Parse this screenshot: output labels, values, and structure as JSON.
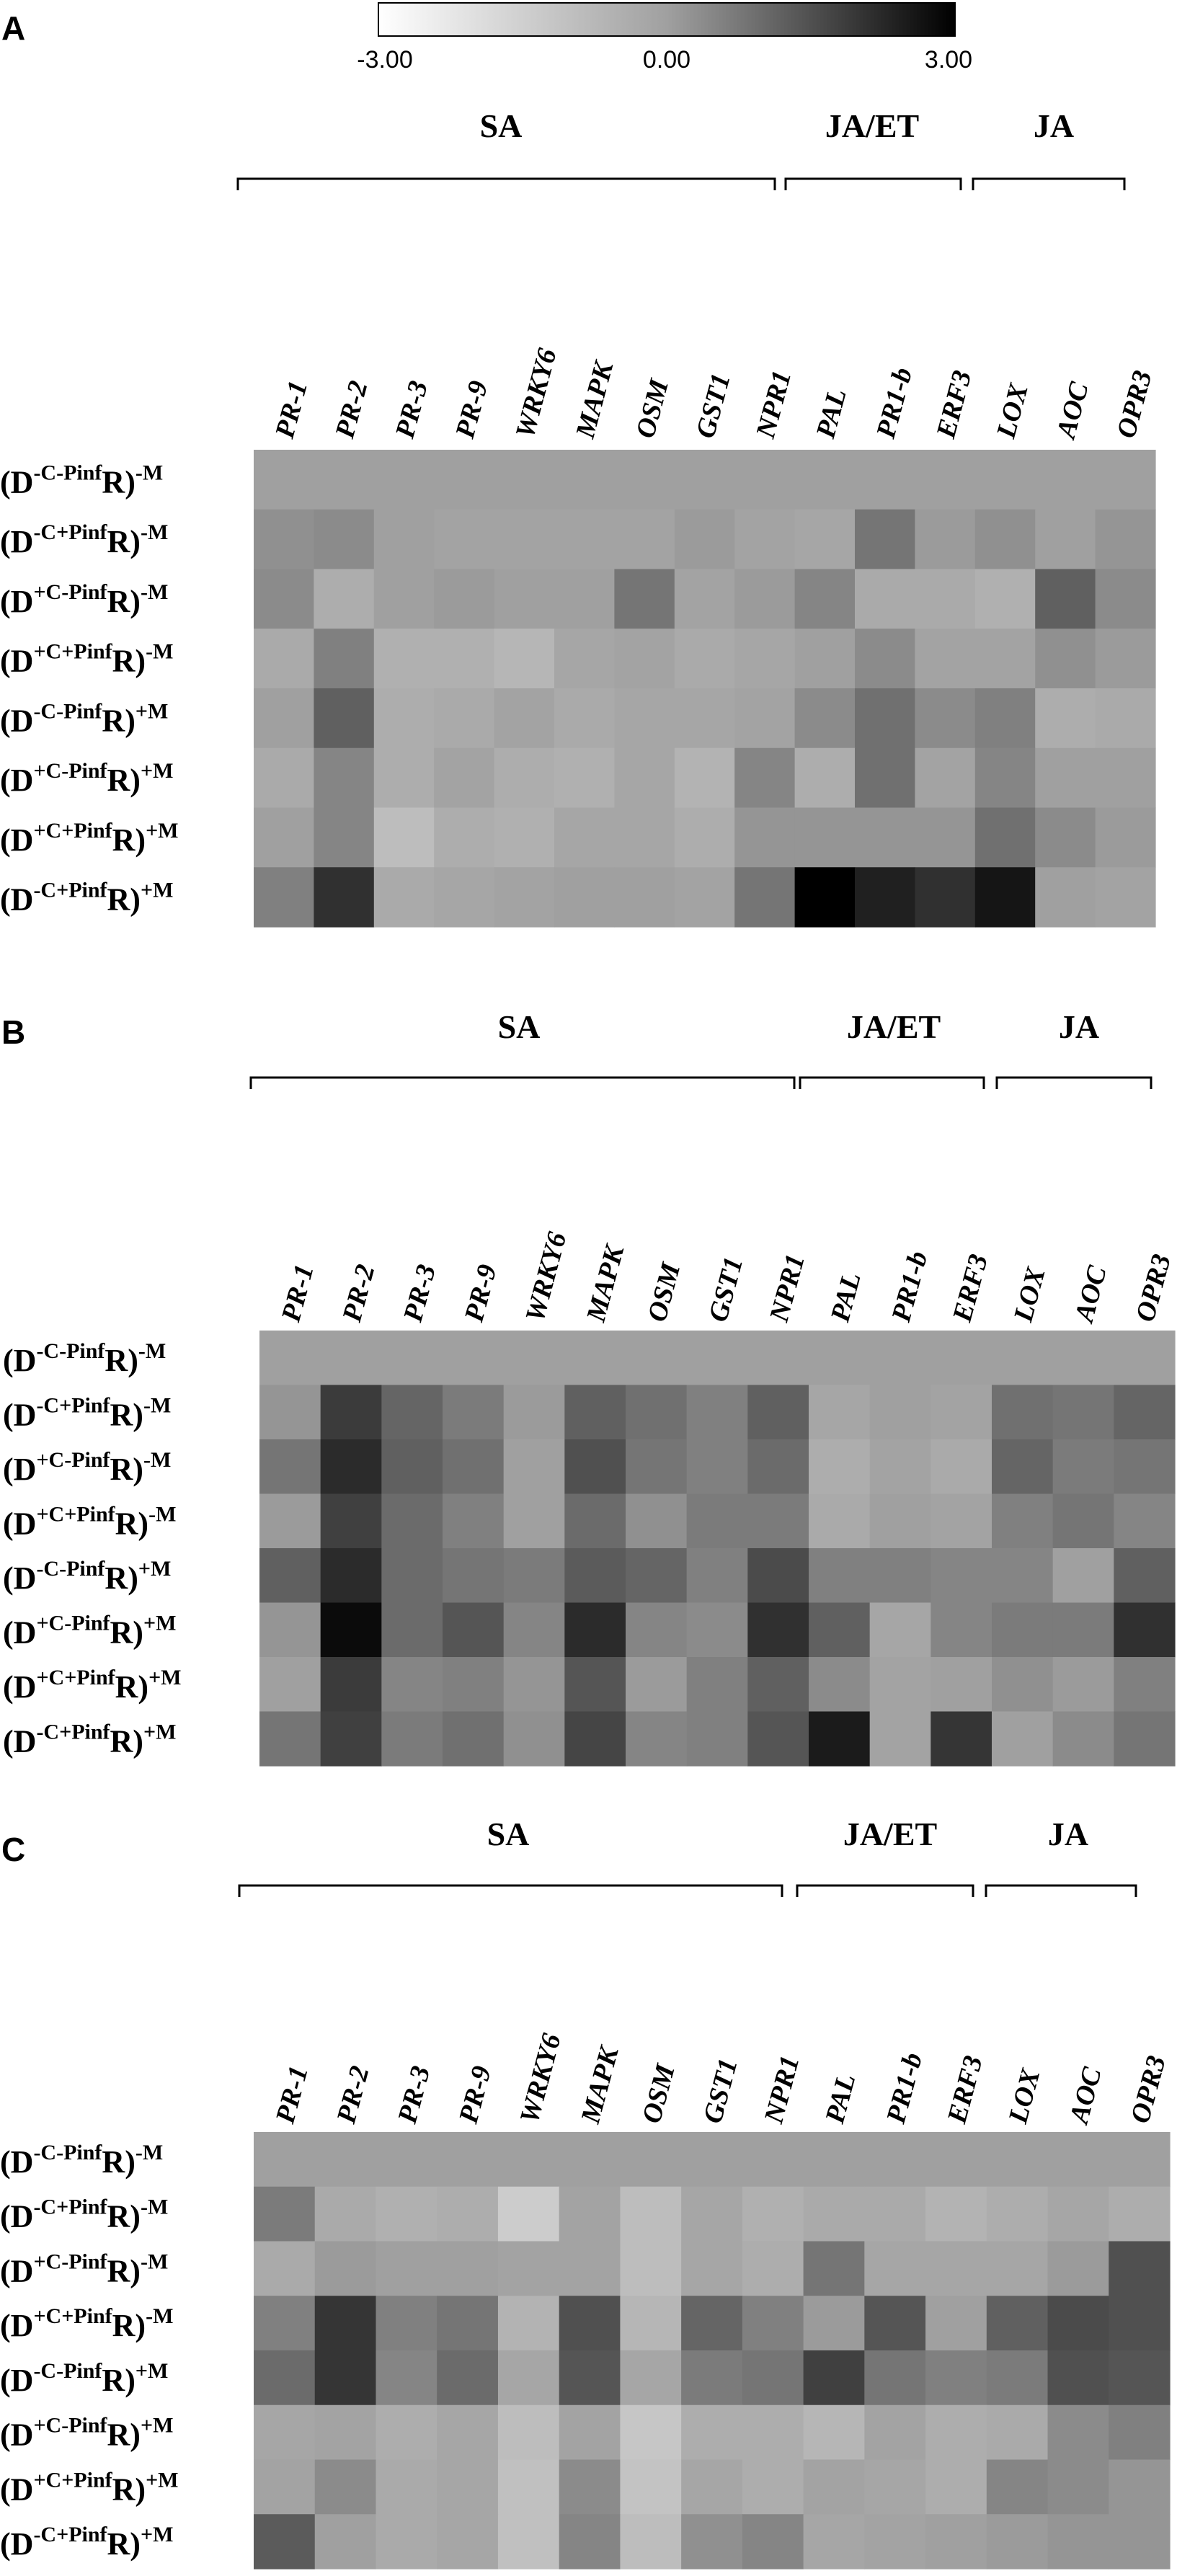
{
  "colorbar": {
    "min_label": "-3.00",
    "mid_label": "0.00",
    "max_label": "3.00",
    "min": -3,
    "max": 3
  },
  "chart_data": [
    {
      "type": "heatmap",
      "panel": "A",
      "groups": [
        {
          "label": "SA",
          "genes": [
            "PR-1",
            "PR-2",
            "PR-3",
            "PR-9",
            "WRKY6",
            "MAPK",
            "OSM",
            "GST1",
            "NPR1"
          ]
        },
        {
          "label": "JA/ET",
          "genes": [
            "PAL",
            "PR1-b",
            "ERF3"
          ]
        },
        {
          "label": "JA",
          "genes": [
            "LOX",
            "AOC",
            "OPR3"
          ]
        }
      ],
      "columns": [
        "PR-1",
        "PR-2",
        "PR-3",
        "PR-9",
        "WRKY6",
        "MAPK",
        "OSM",
        "GST1",
        "NPR1",
        "PAL",
        "PR1-b",
        "ERF3",
        "LOX",
        "AOC",
        "OPR3"
      ],
      "rows": [
        {
          "base": "D",
          "sup1": "-C-Pinf",
          "sup2": "-M"
        },
        {
          "base": "D",
          "sup1": "-C+Pinf",
          "sup2": "-M"
        },
        {
          "base": "D",
          "sup1": "+C-Pinf",
          "sup2": "-M"
        },
        {
          "base": "D",
          "sup1": "+C+Pinf",
          "sup2": "-M"
        },
        {
          "base": "D",
          "sup1": "-C-Pinf",
          "sup2": "+M"
        },
        {
          "base": "D",
          "sup1": "+C-Pinf",
          "sup2": "+M"
        },
        {
          "base": "D",
          "sup1": "+C+Pinf",
          "sup2": "+M"
        },
        {
          "base": "D",
          "sup1": "-C+Pinf",
          "sup2": "+M"
        }
      ],
      "values": [
        [
          0,
          0,
          0,
          0,
          0,
          0,
          0,
          0,
          0,
          0,
          0,
          0,
          0,
          0,
          0
        ],
        [
          0.3,
          0.4,
          0,
          -0.1,
          -0.1,
          -0.1,
          -0.1,
          0.1,
          -0.1,
          -0.2,
          0.8,
          0.1,
          0.3,
          0,
          0.2
        ],
        [
          0.4,
          -0.4,
          0,
          0.1,
          0,
          0,
          0.8,
          -0.1,
          0.1,
          0.5,
          -0.3,
          -0.3,
          -0.5,
          1.2,
          0.4
        ],
        [
          -0.3,
          0.6,
          -0.5,
          -0.5,
          -0.7,
          -0.2,
          -0.1,
          -0.3,
          -0.2,
          0,
          0.4,
          -0.1,
          -0.1,
          0.3,
          0.1
        ],
        [
          0,
          1.2,
          -0.4,
          -0.3,
          -0.1,
          -0.3,
          -0.2,
          -0.2,
          -0.1,
          0.4,
          0.9,
          0.4,
          0.6,
          -0.4,
          -0.3
        ],
        [
          -0.3,
          0.5,
          -0.4,
          -0.1,
          -0.4,
          -0.5,
          -0.2,
          -0.6,
          0.5,
          -0.4,
          0.9,
          -0.1,
          0.5,
          0,
          0
        ],
        [
          0,
          0.5,
          -0.9,
          -0.4,
          -0.5,
          -0.2,
          -0.2,
          -0.4,
          0.2,
          0.2,
          0.2,
          0.2,
          0.9,
          0.4,
          0.1
        ],
        [
          0.6,
          2.1,
          -0.3,
          -0.2,
          -0.1,
          0,
          0,
          -0.1,
          0.8,
          3.0,
          2.4,
          2.1,
          2.6,
          0,
          -0.1
        ]
      ]
    },
    {
      "type": "heatmap",
      "panel": "B",
      "groups": [
        {
          "label": "SA",
          "genes": [
            "PR-1",
            "PR-2",
            "PR-3",
            "PR-9",
            "WRKY6",
            "MAPK",
            "OSM",
            "GST1",
            "NPR1"
          ]
        },
        {
          "label": "JA/ET",
          "genes": [
            "PAL",
            "PR1-b",
            "ERF3"
          ]
        },
        {
          "label": "JA",
          "genes": [
            "LOX",
            "AOC",
            "OPR3"
          ]
        }
      ],
      "columns": [
        "PR-1",
        "PR-2",
        "PR-3",
        "PR-9",
        "WRKY6",
        "MAPK",
        "OSM",
        "GST1",
        "NPR1",
        "PAL",
        "PR1-b",
        "ERF3",
        "LOX",
        "AOC",
        "OPR3"
      ],
      "rows": [
        {
          "base": "D",
          "sup1": "-C-Pinf",
          "sup2": "-M"
        },
        {
          "base": "D",
          "sup1": "-C+Pinf",
          "sup2": "-M"
        },
        {
          "base": "D",
          "sup1": "+C-Pinf",
          "sup2": "-M"
        },
        {
          "base": "D",
          "sup1": "+C+Pinf",
          "sup2": "-M"
        },
        {
          "base": "D",
          "sup1": "-C-Pinf",
          "sup2": "+M"
        },
        {
          "base": "D",
          "sup1": "+C-Pinf",
          "sup2": "+M"
        },
        {
          "base": "D",
          "sup1": "+C+Pinf",
          "sup2": "+M"
        },
        {
          "base": "D",
          "sup1": "-C+Pinf",
          "sup2": "+M"
        }
      ],
      "values": [
        [
          0,
          0,
          0,
          0,
          0,
          0,
          0,
          0,
          0,
          0,
          0,
          0,
          0,
          0,
          0
        ],
        [
          0.2,
          1.9,
          1.1,
          0.7,
          0.1,
          1.2,
          0.9,
          0.6,
          1.2,
          -0.2,
          0,
          -0.1,
          0.9,
          0.8,
          1.1
        ],
        [
          0.8,
          2.2,
          1.2,
          0.9,
          0,
          1.5,
          0.8,
          0.6,
          1.0,
          -0.4,
          -0.1,
          -0.3,
          1.1,
          0.7,
          0.8
        ],
        [
          0.1,
          1.8,
          1.0,
          0.6,
          0,
          1.0,
          0.3,
          0.7,
          0.7,
          -0.3,
          0,
          -0.1,
          0.6,
          0.8,
          0.5
        ],
        [
          1.2,
          2.2,
          1.0,
          0.8,
          0.7,
          1.3,
          1.1,
          0.6,
          1.6,
          0.6,
          0.6,
          0.5,
          0.5,
          0,
          1.2
        ],
        [
          0.2,
          2.8,
          1.0,
          1.4,
          0.5,
          2.2,
          0.5,
          0.4,
          2.1,
          1.2,
          -0.2,
          0.5,
          0.7,
          0.7,
          2.1
        ],
        [
          0,
          1.9,
          0.5,
          0.6,
          0.2,
          1.4,
          0.1,
          0.6,
          1.2,
          0.4,
          -0.1,
          0,
          0.3,
          0.1,
          0.6
        ],
        [
          0.8,
          1.8,
          0.7,
          0.9,
          0.3,
          1.7,
          0.5,
          0.6,
          1.4,
          2.5,
          -0.1,
          2.0,
          0,
          0.4,
          0.8
        ]
      ]
    },
    {
      "type": "heatmap",
      "panel": "C",
      "groups": [
        {
          "label": "SA",
          "genes": [
            "PR-1",
            "PR-2",
            "PR-3",
            "PR-9",
            "WRKY6",
            "MAPK",
            "OSM",
            "GST1",
            "NPR1"
          ]
        },
        {
          "label": "JA/ET",
          "genes": [
            "PAL",
            "PR1-b",
            "ERF3"
          ]
        },
        {
          "label": "JA",
          "genes": [
            "LOX",
            "AOC",
            "OPR3"
          ]
        }
      ],
      "columns": [
        "PR-1",
        "PR-2",
        "PR-3",
        "PR-9",
        "WRKY6",
        "MAPK",
        "OSM",
        "GST1",
        "NPR1",
        "PAL",
        "PR1-b",
        "ERF3",
        "LOX",
        "AOC",
        "OPR3"
      ],
      "rows": [
        {
          "base": "D",
          "sup1": "-C-Pinf",
          "sup2": "-M"
        },
        {
          "base": "D",
          "sup1": "-C+Pinf",
          "sup2": "-M"
        },
        {
          "base": "D",
          "sup1": "+C-Pinf",
          "sup2": "-M"
        },
        {
          "base": "D",
          "sup1": "+C+Pinf",
          "sup2": "-M"
        },
        {
          "base": "D",
          "sup1": "-C-Pinf",
          "sup2": "+M"
        },
        {
          "base": "D",
          "sup1": "+C-Pinf",
          "sup2": "+M"
        },
        {
          "base": "D",
          "sup1": "+C+Pinf",
          "sup2": "+M"
        },
        {
          "base": "D",
          "sup1": "-C+Pinf",
          "sup2": "+M"
        }
      ],
      "values": [
        [
          0,
          0,
          0,
          0,
          0,
          0,
          0,
          0,
          0,
          0,
          0,
          0,
          0,
          0,
          0
        ],
        [
          0.7,
          -0.3,
          -0.5,
          -0.4,
          -1.4,
          -0.1,
          -0.9,
          -0.2,
          -0.5,
          -0.3,
          -0.3,
          -0.6,
          -0.4,
          -0.2,
          -0.4
        ],
        [
          -0.3,
          0.1,
          0,
          0,
          -0.1,
          -0.1,
          -0.9,
          -0.2,
          -0.4,
          0.8,
          -0.2,
          -0.2,
          -0.2,
          0.1,
          1.5
        ],
        [
          0.6,
          2.0,
          0.6,
          0.8,
          -0.6,
          1.5,
          -0.7,
          1.1,
          0.6,
          0.1,
          1.4,
          0,
          1.2,
          1.6,
          1.5
        ],
        [
          1.0,
          2.0,
          0.5,
          1.0,
          -0.2,
          1.4,
          -0.2,
          0.7,
          0.8,
          1.8,
          0.8,
          0.6,
          0.7,
          1.5,
          1.4
        ],
        [
          -0.2,
          -0.1,
          -0.4,
          -0.2,
          -0.9,
          -0.1,
          -1.2,
          -0.4,
          -0.4,
          -0.7,
          -0.1,
          -0.4,
          -0.3,
          0.4,
          0.6
        ],
        [
          -0.1,
          0.4,
          -0.3,
          -0.2,
          -1.0,
          0.4,
          -1.1,
          -0.2,
          -0.4,
          -0.1,
          -0.2,
          -0.4,
          0.5,
          0.4,
          0.2
        ],
        [
          1.3,
          0,
          -0.3,
          -0.2,
          -1.0,
          0.5,
          -0.9,
          0.3,
          0.5,
          -0.2,
          -0.1,
          0,
          0.1,
          0.2,
          0.2
        ]
      ]
    }
  ]
}
